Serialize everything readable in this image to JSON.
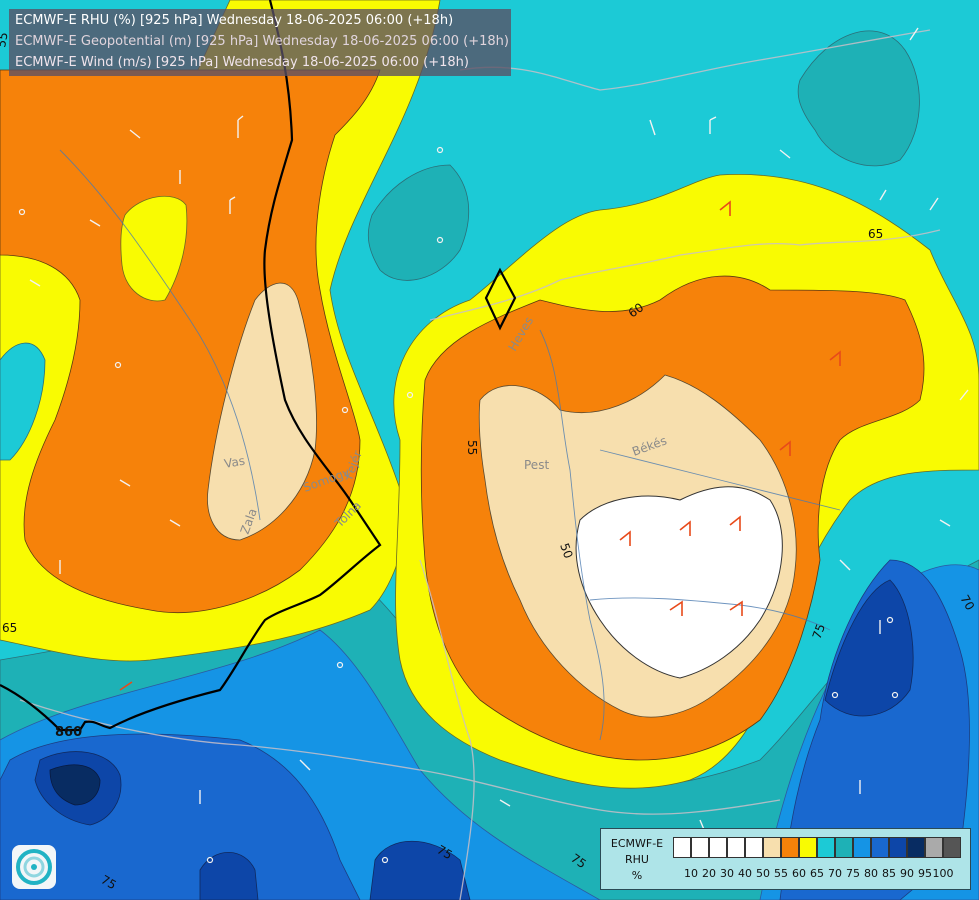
{
  "header": {
    "line1": "ECMWF-E RHU (%) [925 hPa] Wednesday 18-06-2025 06:00 (+18h)",
    "line2": "ECMWF-E Geopotential (m) [925 hPa] Wednesday 18-06-2025 06:00 (+18h)",
    "line3": "ECMWF-E Wind (m/s) [925 hPa] Wednesday 18-06-2025 06:00 (+18h)"
  },
  "legend": {
    "line1": "ECMWF-E",
    "line2": "RHU",
    "line3": "%",
    "colors": [
      "#ffffff",
      "#ffffff",
      "#ffffff",
      "#ffffff",
      "#ffffff",
      "#f7dfae",
      "#f6820a",
      "#f9fb02",
      "#1ccad6",
      "#1eb1b6",
      "#1594e5",
      "#1968cf",
      "#0d46a8",
      "#082c62",
      "#aaaaaa",
      "#555555"
    ],
    "ticks": [
      "10",
      "20",
      "30",
      "40",
      "50",
      "55",
      "60",
      "65",
      "70",
      "75",
      "80",
      "85",
      "90",
      "95",
      "100"
    ]
  },
  "contour_labels": {
    "v60": "60",
    "v55": "55",
    "v50": "50",
    "v65a": "65",
    "v65b": "65",
    "v70": "70",
    "v75a": "75",
    "v75b": "75",
    "v75c": "75",
    "v75d": "75",
    "geo860": "860",
    "ledge": "55"
  },
  "places": {
    "pest": "Pest",
    "bekes": "Békés",
    "heves": "Heves",
    "vas": "Vas",
    "zala": "Zala",
    "somogy": "Somogy",
    "fejer": "Fejér",
    "tolna": "Tolna"
  }
}
